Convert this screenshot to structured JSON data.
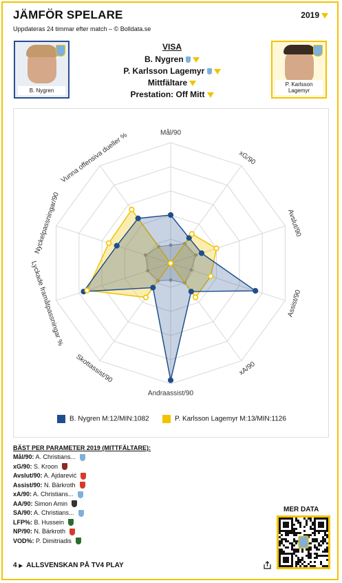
{
  "header": {
    "title": "JÄMFÖR SPELARE",
    "subtitle": "Uppdateras 24 timmar efter match – © Bolldata.se",
    "year": "2019"
  },
  "players": {
    "left": {
      "name": "B. Nygren"
    },
    "right": {
      "name": "P. Karlsson Lagemyr"
    }
  },
  "visa": {
    "heading": "VISA",
    "player1": "B. Nygren",
    "player2": "P. Karlsson Lagemyr",
    "position": "Mittfältare",
    "prestation": "Prestation: Off Mitt"
  },
  "chart_data": {
    "type": "radar",
    "axes": [
      "Mål/90",
      "xG/90",
      "Avslut/90",
      "Assist/90",
      "xA/90",
      "Andraassist/90",
      "Skottassist/90",
      "Lyckade framåtpassningar %",
      "Nyckelpassningar/90",
      "Vunna offensiva dueller %"
    ],
    "axis_max": 100,
    "rings": 5,
    "series": [
      {
        "name": "B. Nygren M:12/MIN:1082",
        "color": "#1f4e8c",
        "values": [
          40,
          26,
          27,
          74,
          29,
          97,
          25,
          76,
          47,
          46
        ]
      },
      {
        "name": "P. Karlsson Lagemyr M:13/MIN:1126",
        "color": "#f2c300",
        "values": [
          0,
          30,
          40,
          35,
          35,
          0,
          35,
          73,
          54,
          55
        ]
      }
    ],
    "grey_series": [
      15,
      20,
      22,
      18,
      20,
      14,
      18,
      20,
      22,
      17
    ]
  },
  "best": {
    "title": "BÄST PER PARAMETER 2019 (MITTFÄLTARE):",
    "rows": [
      {
        "label": "Mål/90:",
        "value": "A. Christians...",
        "club_color": "#7fb0d9"
      },
      {
        "label": "xG/90:",
        "value": "S. Kroon",
        "club_color": "#8b2a1f"
      },
      {
        "label": "Avslut/90:",
        "value": "A. Ajdarević",
        "club_color": "#d63b2a"
      },
      {
        "label": "Assist/90:",
        "value": "N. Bärkroth",
        "club_color": "#d63b2a"
      },
      {
        "label": "xA/90:",
        "value": "A. Christians...",
        "club_color": "#7fb0d9"
      },
      {
        "label": "AA/90:",
        "value": "Simon Amin",
        "club_color": "#333333"
      },
      {
        "label": "SA/90:",
        "value": "A. Christians...",
        "club_color": "#7fb0d9"
      },
      {
        "label": "LFP%:",
        "value": "B. Hussein",
        "club_color": "#2d6b2d"
      },
      {
        "label": "NP/90:",
        "value": "N. Bärkroth",
        "club_color": "#d63b2a"
      },
      {
        "label": "VOD%:",
        "value": "P. Dimitriadis",
        "club_color": "#2d6b2d"
      }
    ]
  },
  "footer": {
    "mer_data": "MER DATA",
    "tv": "ALLSVENSKAN PÅ TV4 PLAY",
    "tv_logo": "4"
  },
  "colors": {
    "accent": "#f2c300",
    "blue": "#1f4e8c"
  }
}
